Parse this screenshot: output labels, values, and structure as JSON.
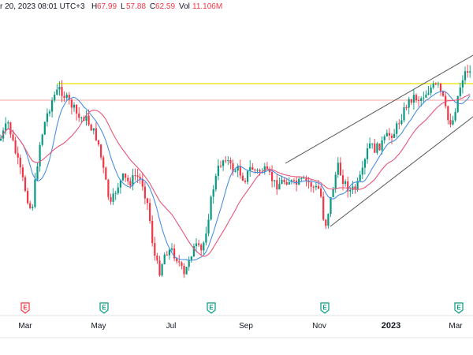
{
  "header": {
    "datetime": "r 20, 2023 08:01 UTC+3",
    "high_label": "H",
    "high": "67.99",
    "low_label": "L",
    "low": "57.88",
    "close_label": "C",
    "close": "62.59",
    "vol_label": "Vol",
    "vol": "11.106M"
  },
  "chart_data": {
    "type": "candlestick",
    "x_ticks": [
      "Mar",
      "May",
      "Jul",
      "Sep",
      "Nov",
      "2023",
      "Mar"
    ],
    "event_markers": [
      {
        "label": "E",
        "color": "#f23645",
        "near": "Mar"
      },
      {
        "label": "E",
        "color": "#089981",
        "near": "May"
      },
      {
        "label": "E",
        "color": "#089981",
        "near": "Jul"
      },
      {
        "label": "E",
        "color": "#089981",
        "near": "Nov"
      },
      {
        "label": "E",
        "color": "#089981",
        "near": "Mar 2023"
      }
    ],
    "series": [
      {
        "name": "",
        "kind": "ohlc"
      },
      {
        "name": "",
        "kind": "moving-average",
        "color": "#4a90e2"
      },
      {
        "name": "",
        "kind": "moving-average",
        "color": "#e8557a"
      }
    ],
    "horizontal_lines": [
      {
        "color": "#e8e200",
        "style": "solid"
      },
      {
        "color": "#f5a3a3",
        "style": "solid"
      }
    ],
    "trend_channel": {
      "color": "#555555"
    },
    "colors": {
      "up": "#089981",
      "down": "#f23645",
      "grid": "#e0e3eb",
      "text": "#131722"
    }
  }
}
